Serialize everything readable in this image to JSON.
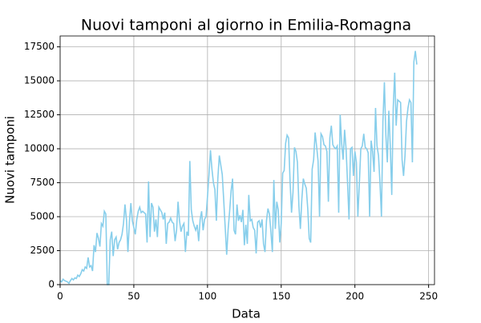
{
  "chart_data": {
    "type": "line",
    "title": "Nuovi tamponi al giorno in Emilia-Romagna",
    "x_label": "Data",
    "y_label": "Nuovi tamponi",
    "x": [
      0,
      1,
      2,
      3,
      4,
      5,
      6,
      7,
      8,
      9,
      10,
      11,
      12,
      13,
      14,
      15,
      16,
      17,
      18,
      19,
      20,
      21,
      22,
      23,
      24,
      25,
      26,
      27,
      28,
      29,
      30,
      31,
      32,
      33,
      34,
      35,
      36,
      37,
      38,
      39,
      40,
      41,
      42,
      43,
      44,
      45,
      46,
      47,
      48,
      49,
      50,
      51,
      52,
      53,
      54,
      55,
      56,
      57,
      58,
      59,
      60,
      61,
      62,
      63,
      64,
      65,
      66,
      67,
      68,
      69,
      70,
      71,
      72,
      73,
      74,
      75,
      76,
      77,
      78,
      79,
      80,
      81,
      82,
      83,
      84,
      85,
      86,
      87,
      88,
      89,
      90,
      91,
      92,
      93,
      94,
      95,
      96,
      97,
      98,
      99,
      100,
      101,
      102,
      103,
      104,
      105,
      106,
      107,
      108,
      109,
      110,
      111,
      112,
      113,
      114,
      115,
      116,
      117,
      118,
      119,
      120,
      121,
      122,
      123,
      124,
      125,
      126,
      127,
      128,
      129,
      130,
      131,
      132,
      133,
      134,
      135,
      136,
      137,
      138,
      139,
      140,
      141,
      142,
      143,
      144,
      145,
      146,
      147,
      148,
      149,
      150,
      151,
      152,
      153,
      154,
      155,
      156,
      157,
      158,
      159,
      160,
      161,
      162,
      163,
      164,
      165,
      166,
      167,
      168,
      169,
      170,
      171,
      172,
      173,
      174,
      175,
      176,
      177,
      178,
      179,
      180,
      181,
      182,
      183,
      184,
      185,
      186,
      187,
      188,
      189,
      190,
      191,
      192,
      193,
      194,
      195,
      196,
      197,
      198,
      199,
      200,
      201,
      202,
      203,
      204,
      205,
      206,
      207,
      208,
      209,
      210,
      211,
      212,
      213,
      214,
      215,
      216,
      217,
      218,
      219,
      220,
      221,
      222,
      223,
      224,
      225,
      226,
      227,
      228,
      229,
      230,
      231,
      232,
      233,
      234,
      235,
      236,
      237,
      238,
      239,
      240,
      241,
      242
    ],
    "series": [
      {
        "name": "Nuovi tamponi",
        "color": "#87ceeb",
        "values": [
          300,
          200,
          400,
          300,
          250,
          200,
          100,
          300,
          450,
          350,
          500,
          450,
          700,
          600,
          800,
          1100,
          1000,
          1300,
          1200,
          2000,
          1300,
          1400,
          1000,
          2900,
          2400,
          3800,
          3400,
          2800,
          4500,
          4300,
          5400,
          5200,
          0,
          0,
          3300,
          3900,
          2100,
          3300,
          3500,
          2600,
          3100,
          3300,
          3700,
          4500,
          5900,
          4800,
          2400,
          4600,
          6000,
          4700,
          4200,
          3700,
          4800,
          5400,
          5700,
          5300,
          5400,
          5300,
          5200,
          3100,
          7600,
          3500,
          6000,
          5700,
          3900,
          4800,
          3500,
          5700,
          5500,
          5300,
          4800,
          5300,
          3000,
          4500,
          4600,
          4900,
          4600,
          4500,
          3200,
          4000,
          6100,
          4700,
          3900,
          4300,
          4500,
          2400,
          3900,
          3600,
          9100,
          5500,
          4700,
          4300,
          4000,
          4400,
          3200,
          4800,
          5400,
          4000,
          4800,
          5000,
          6500,
          8100,
          9900,
          8500,
          7500,
          7000,
          4700,
          7800,
          9500,
          8800,
          8100,
          6200,
          4200,
          2200,
          4100,
          5400,
          6900,
          7800,
          4000,
          3700,
          5900,
          4700,
          5100,
          4600,
          5500,
          2900,
          4400,
          3000,
          6600,
          4700,
          4800,
          4200,
          4000,
          2300,
          4600,
          4700,
          4200,
          4800,
          3000,
          2400,
          4700,
          5600,
          5200,
          3900,
          2400,
          7700,
          4100,
          6100,
          5500,
          3100,
          4500,
          8200,
          8400,
          10400,
          11000,
          10800,
          7600,
          5300,
          6800,
          10100,
          9800,
          9000,
          5800,
          4100,
          6300,
          7800,
          7400,
          7100,
          5600,
          3400,
          3100,
          8500,
          9200,
          11200,
          10200,
          9100,
          5000,
          11100,
          10900,
          10300,
          10200,
          9800,
          6100,
          10800,
          11700,
          10300,
          10100,
          10000,
          10200,
          5300,
          12500,
          10400,
          9200,
          11400,
          10000,
          7500,
          4800,
          10000,
          10100,
          8000,
          9800,
          9000,
          5000,
          7400,
          10000,
          10200,
          11100,
          10100,
          10000,
          9700,
          5000,
          10600,
          9800,
          8300,
          13000,
          10200,
          9500,
          7500,
          5000,
          12000,
          14900,
          11000,
          9000,
          12800,
          10200,
          6600,
          13000,
          15600,
          11700,
          13600,
          13500,
          13400,
          9200,
          8000,
          9500,
          12000,
          13000,
          13600,
          13400,
          9000,
          16400,
          17200,
          16200
        ]
      }
    ],
    "xlim": [
      0,
      254
    ],
    "ylim": [
      0,
      18300
    ],
    "xticks": [
      0,
      50,
      100,
      150,
      200,
      250
    ],
    "yticks": [
      0,
      2500,
      5000,
      7500,
      10000,
      12500,
      15000,
      17500
    ],
    "grid": true
  }
}
